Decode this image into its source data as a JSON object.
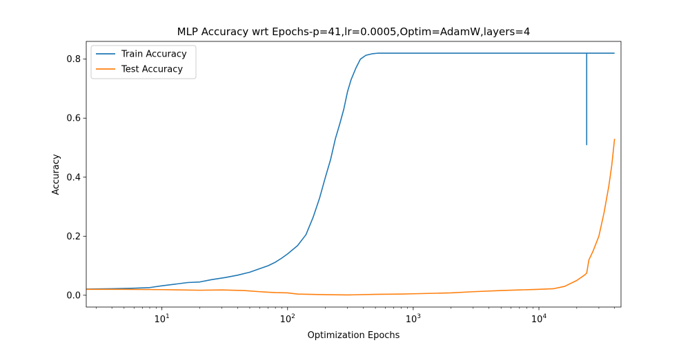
{
  "chart_data": {
    "type": "line",
    "title": "MLP Accuracy wrt Epochs-p=41,lr=0.0005,Optim=AdamW,layers=4",
    "xlabel": "Optimization Epochs",
    "ylabel": "Accuracy",
    "xscale": "log",
    "xlim": [
      2.5,
      45000
    ],
    "ylim": [
      -0.04,
      0.86
    ],
    "xticks": [
      {
        "value": 10,
        "base": "10",
        "exp": "1"
      },
      {
        "value": 100,
        "base": "10",
        "exp": "2"
      },
      {
        "value": 1000,
        "base": "10",
        "exp": "3"
      },
      {
        "value": 10000,
        "base": "10",
        "exp": "4"
      }
    ],
    "yticks": [
      {
        "value": 0.0,
        "label": "0.0"
      },
      {
        "value": 0.2,
        "label": "0.2"
      },
      {
        "value": 0.4,
        "label": "0.4"
      },
      {
        "value": 0.6,
        "label": "0.6"
      },
      {
        "value": 0.8,
        "label": "0.8"
      }
    ],
    "legend_position": "top-left",
    "series": [
      {
        "name": "Train Accuracy",
        "color": "#1f77b4",
        "x": [
          2.5,
          4,
          6,
          8,
          10,
          13,
          16,
          20,
          25,
          32,
          40,
          50,
          60,
          70,
          80,
          90,
          100,
          120,
          140,
          160,
          180,
          200,
          220,
          240,
          260,
          280,
          300,
          320,
          350,
          380,
          420,
          470,
          520,
          1000,
          5000,
          10000,
          20000,
          24000,
          24000,
          24000,
          30000,
          40000
        ],
        "y": [
          0.021,
          0.022,
          0.024,
          0.026,
          0.032,
          0.038,
          0.043,
          0.045,
          0.053,
          0.06,
          0.068,
          0.078,
          0.09,
          0.1,
          0.112,
          0.126,
          0.14,
          0.168,
          0.205,
          0.265,
          0.33,
          0.4,
          0.46,
          0.53,
          0.58,
          0.63,
          0.69,
          0.73,
          0.77,
          0.8,
          0.813,
          0.818,
          0.82,
          0.82,
          0.82,
          0.82,
          0.82,
          0.82,
          0.51,
          0.82,
          0.82,
          0.82
        ]
      },
      {
        "name": "Test Accuracy",
        "color": "#ff7f0e",
        "x": [
          2.5,
          5,
          10,
          20,
          30,
          45,
          60,
          80,
          100,
          120,
          150,
          200,
          300,
          500,
          800,
          1000,
          2000,
          3000,
          5000,
          7000,
          10000,
          13000,
          16000,
          20000,
          23000,
          24000,
          25000,
          27000,
          30000,
          33000,
          36000,
          38000,
          40000
        ],
        "y": [
          0.02,
          0.02,
          0.019,
          0.017,
          0.018,
          0.016,
          0.012,
          0.009,
          0.008,
          0.004,
          0.003,
          0.002,
          0.001,
          0.003,
          0.004,
          0.005,
          0.008,
          0.012,
          0.016,
          0.018,
          0.02,
          0.022,
          0.03,
          0.05,
          0.068,
          0.075,
          0.12,
          0.15,
          0.2,
          0.28,
          0.37,
          0.44,
          0.53
        ]
      }
    ]
  }
}
